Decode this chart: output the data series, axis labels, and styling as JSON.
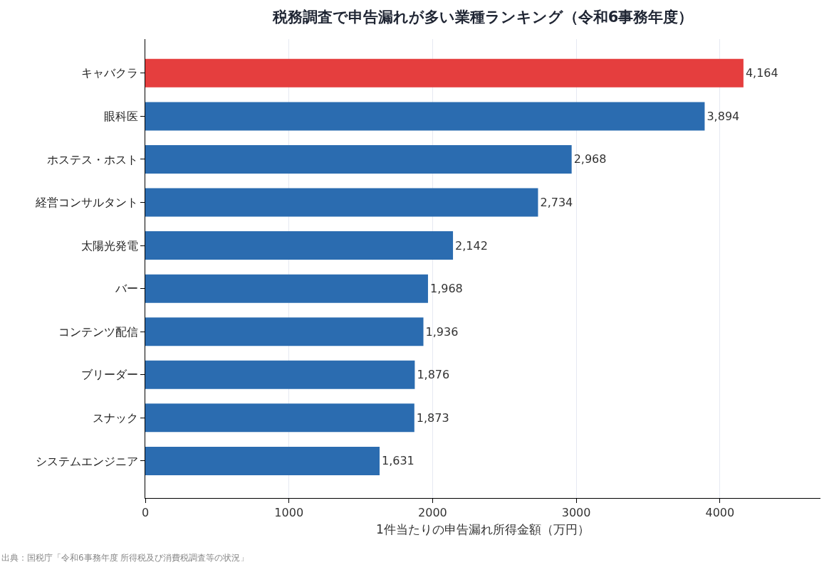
{
  "chart_data": {
    "type": "bar",
    "orientation": "horizontal",
    "title": "税務調査で申告漏れが多い業種ランキング（令和6事務年度）",
    "xlabel": "1件当たりの申告漏れ所得金額（万円）",
    "categories": [
      "キャバクラ",
      "眼科医",
      "ホステス・ホスト",
      "経営コンサルタント",
      "太陽光発電",
      "バー",
      "コンテンツ配信",
      "ブリーダー",
      "スナック",
      "システムエンジニア"
    ],
    "values": [
      4164,
      3894,
      2968,
      2734,
      2142,
      1968,
      1936,
      1876,
      1873,
      1631
    ],
    "value_labels": [
      "4,164",
      "3,894",
      "2,968",
      "2,734",
      "2,142",
      "1,968",
      "1,936",
      "1,876",
      "1,873",
      "1,631"
    ],
    "colors": [
      "#e53e3e",
      "#2b6cb0",
      "#2b6cb0",
      "#2b6cb0",
      "#2b6cb0",
      "#2b6cb0",
      "#2b6cb0",
      "#2b6cb0",
      "#2b6cb0",
      "#2b6cb0"
    ],
    "xlim": [
      0,
      4700
    ],
    "xticks": [
      0,
      1000,
      2000,
      3000,
      4000
    ],
    "grid": "x",
    "legend": false,
    "annotations": [
      "出典：国税庁「令和6事務年度 所得税及び消費税調査等の状況」"
    ]
  }
}
